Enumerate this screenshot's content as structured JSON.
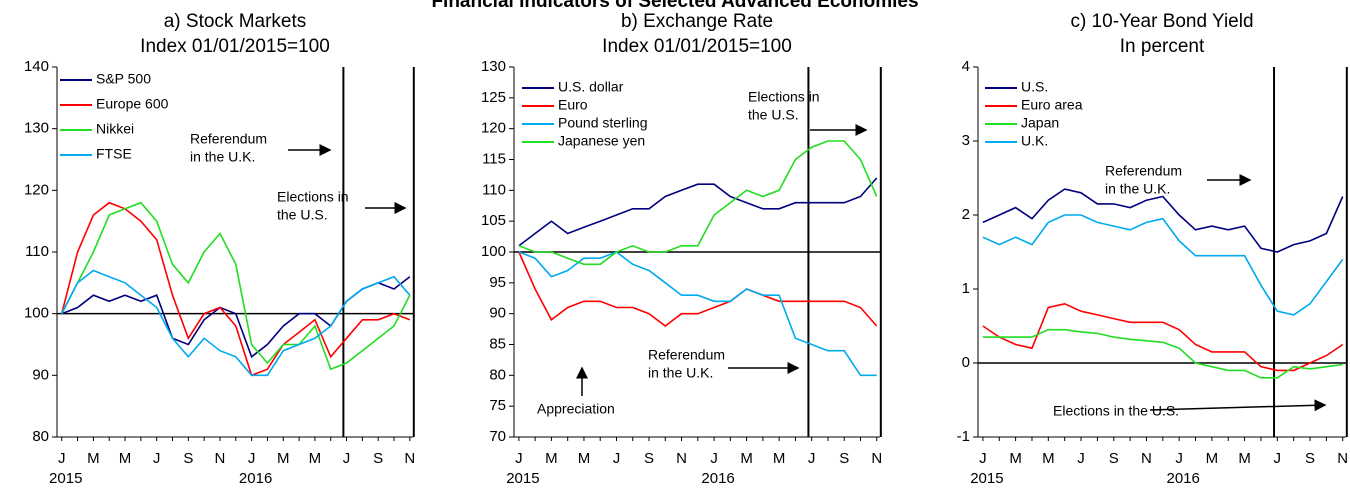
{
  "title": "Financial Indicators of Selected Advanced Economies",
  "chart_data": [
    {
      "type": "line",
      "title": "a) Stock Markets",
      "subtitle": "Index 01/01/2015=100",
      "categories": [
        "J",
        null,
        "M",
        null,
        "M",
        null,
        "J",
        null,
        "S",
        null,
        "N",
        null,
        "J",
        null,
        "M",
        null,
        "M",
        null,
        "J",
        null,
        "S",
        null,
        "N"
      ],
      "years": [
        "2015",
        "2016"
      ],
      "ylim": [
        80,
        140
      ],
      "yticks": [
        80,
        90,
        100,
        110,
        120,
        130,
        140
      ],
      "reference_line": 100,
      "series": [
        {
          "name": "S&P 500",
          "color": "#000080",
          "values": [
            100,
            101,
            103,
            102,
            103,
            102,
            103,
            96,
            95,
            99,
            101,
            100,
            93,
            95,
            98,
            100,
            100,
            98,
            102,
            104,
            105,
            104,
            106
          ]
        },
        {
          "name": "Europe 600",
          "color": "#ff0000",
          "values": [
            100,
            110,
            116,
            118,
            117,
            115,
            112,
            103,
            96,
            100,
            101,
            98,
            90,
            91,
            95,
            97,
            99,
            93,
            96,
            99,
            99,
            100,
            99
          ]
        },
        {
          "name": "Nikkei",
          "color": "#22dd22",
          "values": [
            100,
            105,
            110,
            116,
            117,
            118,
            115,
            108,
            105,
            110,
            113,
            108,
            95,
            92,
            95,
            95,
            98,
            91,
            92,
            94,
            96,
            98,
            103
          ]
        },
        {
          "name": "FTSE",
          "color": "#00aaee",
          "values": [
            100,
            105,
            107,
            106,
            105,
            103,
            101,
            96,
            93,
            96,
            94,
            93,
            90,
            90,
            94,
            95,
            96,
            98,
            102,
            104,
            105,
            106,
            103
          ]
        }
      ],
      "annotations": [
        {
          "text": [
            "Referendum",
            "in the U.K."
          ]
        },
        {
          "text": [
            "Elections in",
            "the U.S."
          ]
        }
      ]
    },
    {
      "type": "line",
      "title": "b) Exchange Rate",
      "subtitle": "Index 01/01/2015=100",
      "categories": [
        "J",
        null,
        "M",
        null,
        "M",
        null,
        "J",
        null,
        "S",
        null,
        "N",
        null,
        "J",
        null,
        "M",
        null,
        "M",
        null,
        "J",
        null,
        "S",
        null,
        "N"
      ],
      "years": [
        "2015",
        "2016"
      ],
      "ylim": [
        70,
        130
      ],
      "yticks": [
        70,
        75,
        80,
        85,
        90,
        95,
        100,
        105,
        110,
        115,
        120,
        125,
        130
      ],
      "reference_line": 100,
      "series": [
        {
          "name": "U.S. dollar",
          "color": "#000080",
          "values": [
            101,
            103,
            105,
            103,
            104,
            105,
            106,
            107,
            107,
            109,
            110,
            111,
            111,
            109,
            108,
            107,
            107,
            108,
            108,
            108,
            108,
            109,
            112
          ]
        },
        {
          "name": "Euro",
          "color": "#ff0000",
          "values": [
            100,
            94,
            89,
            91,
            92,
            92,
            91,
            91,
            90,
            88,
            90,
            90,
            91,
            92,
            94,
            93,
            92,
            92,
            92,
            92,
            92,
            91,
            88
          ]
        },
        {
          "name": "Pound sterling",
          "color": "#00aaee",
          "values": [
            100,
            99,
            96,
            97,
            99,
            99,
            100,
            98,
            97,
            95,
            93,
            93,
            92,
            92,
            94,
            93,
            93,
            86,
            85,
            84,
            84,
            80,
            80
          ]
        },
        {
          "name": "Japanese yen",
          "color": "#22dd22",
          "values": [
            101,
            100,
            100,
            99,
            98,
            98,
            100,
            101,
            100,
            100,
            101,
            101,
            106,
            108,
            110,
            109,
            110,
            115,
            117,
            118,
            118,
            115,
            109
          ]
        }
      ],
      "annotations": [
        {
          "text": [
            "Elections in",
            "the U.S."
          ]
        },
        {
          "text": [
            "Referendum",
            "in the U.K."
          ]
        },
        {
          "text": [
            "Appreciation"
          ]
        }
      ]
    },
    {
      "type": "line",
      "title": "c) 10-Year Bond Yield",
      "subtitle": "In percent",
      "categories": [
        "J",
        null,
        "M",
        null,
        "M",
        null,
        "J",
        null,
        "S",
        null,
        "N",
        null,
        "J",
        null,
        "M",
        null,
        "M",
        null,
        "J",
        null,
        "S",
        null,
        "N"
      ],
      "years": [
        "2015",
        "2016"
      ],
      "ylim": [
        -1,
        4
      ],
      "yticks": [
        -1,
        0,
        1,
        2,
        3,
        4
      ],
      "reference_line": 0,
      "series": [
        {
          "name": "U.S.",
          "color": "#000080",
          "values": [
            1.9,
            2.0,
            2.1,
            1.95,
            2.2,
            2.35,
            2.3,
            2.15,
            2.15,
            2.1,
            2.2,
            2.25,
            2.0,
            1.8,
            1.85,
            1.8,
            1.85,
            1.55,
            1.5,
            1.6,
            1.65,
            1.75,
            2.25
          ]
        },
        {
          "name": "Euro area",
          "color": "#ff0000",
          "values": [
            0.5,
            0.35,
            0.25,
            0.2,
            0.75,
            0.8,
            0.7,
            0.65,
            0.6,
            0.55,
            0.55,
            0.55,
            0.45,
            0.25,
            0.15,
            0.15,
            0.15,
            -0.05,
            -0.1,
            -0.1,
            0,
            0.1,
            0.25
          ]
        },
        {
          "name": "Japan",
          "color": "#22dd22",
          "values": [
            0.35,
            0.35,
            0.35,
            0.35,
            0.45,
            0.45,
            0.42,
            0.4,
            0.35,
            0.32,
            0.3,
            0.28,
            0.2,
            0,
            -0.05,
            -0.1,
            -0.1,
            -0.2,
            -0.2,
            -0.05,
            -0.08,
            -0.05,
            -0.02
          ]
        },
        {
          "name": "U.K.",
          "color": "#00aaee",
          "values": [
            1.7,
            1.6,
            1.7,
            1.6,
            1.9,
            2.0,
            2.0,
            1.9,
            1.85,
            1.8,
            1.9,
            1.95,
            1.65,
            1.45,
            1.45,
            1.45,
            1.45,
            1.05,
            0.7,
            0.65,
            0.8,
            1.1,
            1.4
          ]
        }
      ],
      "annotations": [
        {
          "text": [
            "Referendum",
            "in the U.K."
          ]
        },
        {
          "text": [
            "Elections in the U.S."
          ]
        }
      ]
    }
  ]
}
